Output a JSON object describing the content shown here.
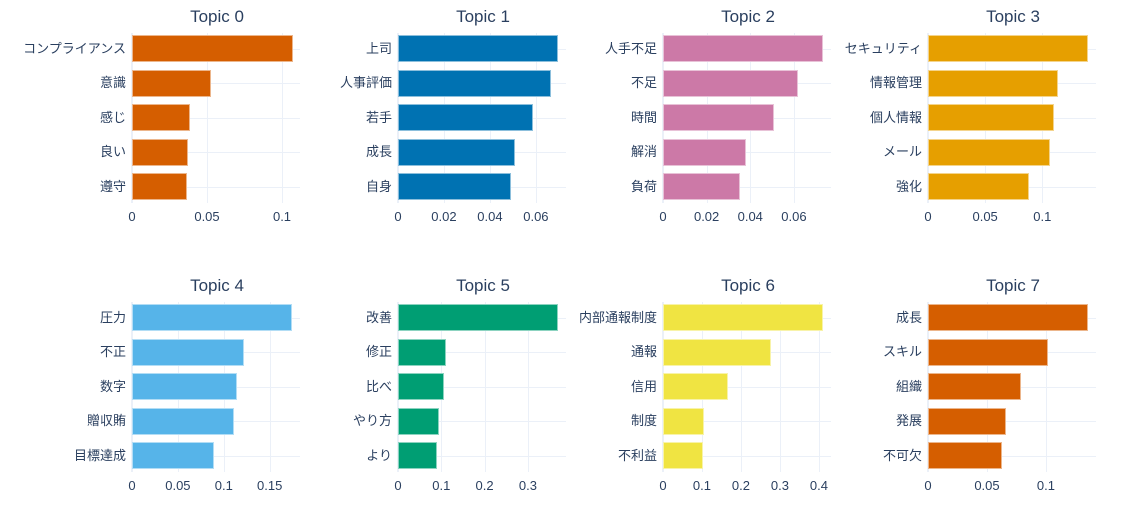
{
  "chart_data": [
    {
      "type": "bar",
      "orientation": "horizontal",
      "title": "Topic 0",
      "color": "#D55E00",
      "categories": [
        "コンプライアンス",
        "意識",
        "感じ",
        "良い",
        "遵守"
      ],
      "values": [
        0.107,
        0.0527,
        0.0387,
        0.0373,
        0.0367
      ],
      "xticks": [
        0,
        0.05,
        0.1
      ],
      "xtick_labels": [
        "0",
        "0.05",
        "0.1"
      ],
      "xlim": [
        0,
        0.112
      ],
      "xlabel": "",
      "ylabel": "",
      "grid": true
    },
    {
      "type": "bar",
      "orientation": "horizontal",
      "title": "Topic 1",
      "color": "#0072B2",
      "categories": [
        "上司",
        "人事評価",
        "若手",
        "成長",
        "自身"
      ],
      "values": [
        0.0696,
        0.0665,
        0.0587,
        0.0509,
        0.0491
      ],
      "xticks": [
        0,
        0.02,
        0.04,
        0.06
      ],
      "xtick_labels": [
        "0",
        "0.02",
        "0.04",
        "0.06"
      ],
      "xlim": [
        0,
        0.0731
      ],
      "xlabel": "",
      "ylabel": "",
      "grid": true
    },
    {
      "type": "bar",
      "orientation": "horizontal",
      "title": "Topic 2",
      "color": "#CC79A7",
      "categories": [
        "人手不足",
        "不足",
        "時間",
        "解消",
        "負荷"
      ],
      "values": [
        0.0733,
        0.0618,
        0.0508,
        0.038,
        0.0352
      ],
      "xticks": [
        0,
        0.02,
        0.04,
        0.06
      ],
      "xtick_labels": [
        "0",
        "0.02",
        "0.04",
        "0.06"
      ],
      "xlim": [
        0,
        0.077
      ],
      "xlabel": "",
      "ylabel": "",
      "grid": true
    },
    {
      "type": "bar",
      "orientation": "horizontal",
      "title": "Topic 3",
      "color": "#E69F00",
      "categories": [
        "セキュリティ",
        "情報管理",
        "個人情報",
        "メール",
        "強化"
      ],
      "values": [
        0.14,
        0.114,
        0.1105,
        0.1065,
        0.0886
      ],
      "xticks": [
        0,
        0.05,
        0.1
      ],
      "xtick_labels": [
        "0",
        "0.05",
        "0.1"
      ],
      "xlim": [
        0,
        0.147
      ],
      "xlabel": "",
      "ylabel": "",
      "grid": true
    },
    {
      "type": "bar",
      "orientation": "horizontal",
      "title": "Topic 4",
      "color": "#56B4E9",
      "categories": [
        "圧力",
        "不正",
        "数字",
        "贈収賄",
        "目標達成"
      ],
      "values": [
        0.174,
        0.122,
        0.1145,
        0.111,
        0.0896
      ],
      "xticks": [
        0,
        0.05,
        0.1,
        0.15
      ],
      "xtick_labels": [
        "0",
        "0.05",
        "0.1",
        "0.15"
      ],
      "xlim": [
        0,
        0.183
      ],
      "xlabel": "",
      "ylabel": "",
      "grid": true
    },
    {
      "type": "bar",
      "orientation": "horizontal",
      "title": "Topic 5",
      "color": "#009E73",
      "categories": [
        "改善",
        "修正",
        "比べ",
        "やり方",
        "より"
      ],
      "values": [
        0.369,
        0.111,
        0.106,
        0.0947,
        0.09
      ],
      "xticks": [
        0,
        0.1,
        0.2,
        0.3
      ],
      "xtick_labels": [
        "0",
        "0.1",
        "0.2",
        "0.3"
      ],
      "xlim": [
        0,
        0.388
      ],
      "xlabel": "",
      "ylabel": "",
      "grid": true
    },
    {
      "type": "bar",
      "orientation": "horizontal",
      "title": "Topic 6",
      "color": "#F0E442",
      "categories": [
        "内部通報制度",
        "通報",
        "信用",
        "制度",
        "不利益"
      ],
      "values": [
        0.41,
        0.277,
        0.167,
        0.105,
        0.1025
      ],
      "xticks": [
        0,
        0.1,
        0.2,
        0.3,
        0.4
      ],
      "xtick_labels": [
        "0",
        "0.1",
        "0.2",
        "0.3",
        "0.4"
      ],
      "xlim": [
        0,
        0.431
      ],
      "xlabel": "",
      "ylabel": "",
      "grid": true
    },
    {
      "type": "bar",
      "orientation": "horizontal",
      "title": "Topic 7",
      "color": "#D55E00",
      "categories": [
        "成長",
        "スキル",
        "組織",
        "発展",
        "不可欠"
      ],
      "values": [
        0.1356,
        0.1017,
        0.0788,
        0.0661,
        0.0627
      ],
      "xticks": [
        0,
        0.05,
        0.1
      ],
      "xtick_labels": [
        "0",
        "0.05",
        "0.1"
      ],
      "xlim": [
        0,
        0.1424
      ],
      "xlabel": "",
      "ylabel": "",
      "grid": true
    }
  ]
}
